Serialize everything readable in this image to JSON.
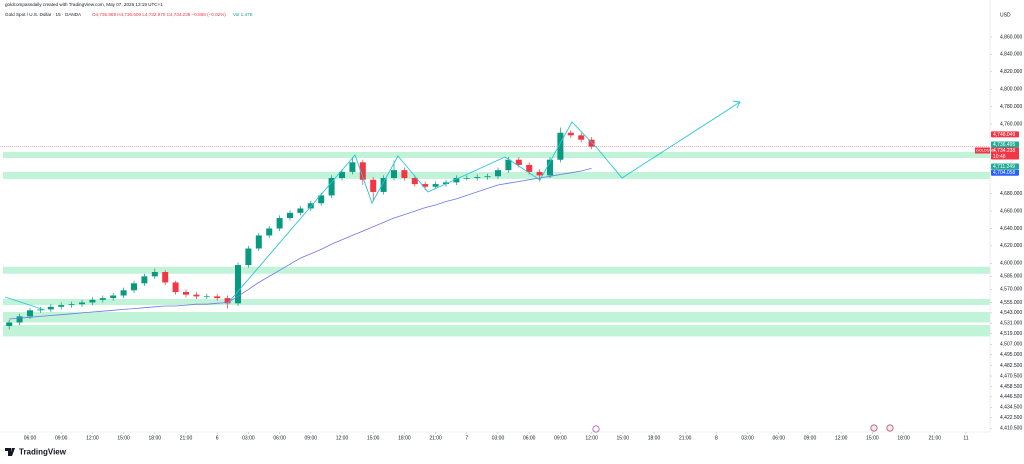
{
  "chart_data": {
    "type": "candlestick",
    "title": "goldcompassdaily created with TradingView.com, May 07, 2026 13:19 UTC+1",
    "subtitle": "Gold Spot / U.S. Dollar · 15 · OANDA",
    "ohlc_text": "O4,735.869 H4,736.609 L4,732.970 C4,734.238 −0.868 (−0.02%)",
    "volume_text": "Vol 1.47K",
    "currency": "USD",
    "footer": "TradingView",
    "up_color": "#089981",
    "down_color": "#f23645",
    "grid": false,
    "categories": [
      null,
      null,
      "06:00",
      null,
      null,
      "09:00",
      null,
      null,
      "12:00",
      null,
      null,
      "15:00",
      null,
      null,
      "18:00",
      null,
      null,
      "21:00",
      null,
      null,
      "6",
      null,
      null,
      "03:00",
      null,
      null,
      "06:00",
      null,
      null,
      "09:00",
      null,
      null,
      "12:00",
      null,
      null,
      "15:00",
      null,
      null,
      "18:00",
      null,
      null,
      "21:00",
      null,
      null,
      "7",
      null,
      null,
      "03:00",
      null,
      null,
      "06:00",
      null,
      null,
      "09:00",
      null,
      null,
      "12:00",
      null,
      null,
      "15:00",
      null,
      null,
      "18:00",
      null,
      null,
      "21:00",
      null,
      null,
      "8",
      null,
      null,
      "03:00",
      null,
      null,
      "06:00",
      null,
      null,
      "09:00",
      null,
      null,
      "12:00",
      null,
      null,
      "15:00",
      null,
      null,
      "18:00",
      null,
      null,
      "21:00",
      null,
      null,
      "11"
    ],
    "open": [
      4528,
      4532,
      4539,
      4546,
      4547,
      4550,
      4552,
      4553,
      4555,
      4558,
      4560,
      4563,
      4569,
      4577,
      4585,
      4590,
      4578,
      4567,
      4564,
      4562,
      4562,
      4560,
      4554,
      4598,
      4617,
      4632,
      4640,
      4652,
      4658,
      4663,
      4669,
      4678,
      4698,
      4705,
      4716,
      4696,
      4682,
      4698,
      4707,
      4698,
      4691,
      4688,
      4691,
      4693,
      4698,
      4698,
      4699,
      4700,
      4707,
      4719,
      4713,
      4705,
      4701,
      4719,
      4750,
      4747,
      4742,
      null,
      null,
      null,
      null,
      null,
      null,
      null,
      null,
      null,
      null,
      null,
      null,
      null,
      null,
      null,
      null,
      null,
      null,
      null,
      null,
      null,
      null,
      null,
      null,
      null,
      null,
      null,
      null,
      null,
      null,
      null,
      null,
      null,
      null,
      null,
      null
    ],
    "high": [
      4535,
      4542,
      4549,
      4550,
      4553,
      4555,
      4556,
      4558,
      4561,
      4563,
      4566,
      4572,
      4580,
      4588,
      4594,
      4592,
      4580,
      4570,
      4567,
      4565,
      4565,
      4563,
      4601,
      4620,
      4635,
      4643,
      4655,
      4661,
      4666,
      4672,
      4681,
      4701,
      4708,
      4722,
      4719,
      4699,
      4701,
      4718,
      4710,
      4701,
      4694,
      4694,
      4696,
      4701,
      4701,
      4702,
      4703,
      4710,
      4722,
      4722,
      4716,
      4708,
      4722,
      4756,
      4753,
      4750,
      4745,
      null,
      null,
      null,
      null,
      null,
      null,
      null,
      null,
      null,
      null,
      null,
      null,
      null,
      null,
      null,
      null,
      null,
      null,
      null,
      null,
      null,
      null,
      null,
      null,
      null,
      null,
      null,
      null,
      null,
      null,
      null,
      null,
      null,
      null,
      null,
      null
    ],
    "low": [
      4524,
      4529,
      4536,
      4543,
      4544,
      4547,
      4549,
      4550,
      4552,
      4555,
      4557,
      4560,
      4566,
      4574,
      4582,
      4575,
      4564,
      4561,
      4559,
      4559,
      4557,
      4548,
      4551,
      4595,
      4614,
      4629,
      4637,
      4649,
      4655,
      4660,
      4666,
      4675,
      4695,
      4702,
      4690,
      4672,
      4679,
      4695,
      4695,
      4688,
      4684,
      4685,
      4688,
      4690,
      4695,
      4695,
      4696,
      4697,
      4704,
      4710,
      4702,
      4694,
      4698,
      4716,
      4744,
      4739,
      4731,
      null,
      null,
      null,
      null,
      null,
      null,
      null,
      null,
      null,
      null,
      null,
      null,
      null,
      null,
      null,
      null,
      null,
      null,
      null,
      null,
      null,
      null,
      null,
      null,
      null,
      null,
      null,
      null,
      null,
      null,
      null,
      null,
      null,
      null,
      null,
      null
    ],
    "close": [
      4532,
      4539,
      4546,
      4547,
      4550,
      4552,
      4553,
      4555,
      4558,
      4560,
      4563,
      4569,
      4577,
      4585,
      4590,
      4578,
      4567,
      4564,
      4562,
      4562,
      4560,
      4554,
      4598,
      4617,
      4632,
      4640,
      4652,
      4658,
      4663,
      4669,
      4678,
      4698,
      4705,
      4716,
      4696,
      4682,
      4698,
      4707,
      4698,
      4691,
      4688,
      4691,
      4693,
      4698,
      4698,
      4699,
      4700,
      4707,
      4719,
      4713,
      4705,
      4701,
      4719,
      4750,
      4747,
      4742,
      4734,
      null,
      null,
      null,
      null,
      null,
      null,
      null,
      null,
      null,
      null,
      null,
      null,
      null,
      null,
      null,
      null,
      null,
      null,
      null,
      null,
      null,
      null,
      null,
      null,
      null,
      null,
      null,
      null,
      null,
      null,
      null,
      null,
      null,
      null,
      null,
      null
    ],
    "moving_average": {
      "color": "#6c79e8",
      "values": [
        4536,
        4537,
        4538,
        4539,
        4540,
        4541,
        4542,
        4543,
        4544,
        4545,
        4546,
        4547,
        4548,
        4549,
        4550,
        4551,
        4551,
        4552,
        4553,
        4553,
        4554,
        4555,
        4562,
        4570,
        4578,
        4585,
        4592,
        4599,
        4606,
        4611,
        4616,
        4622,
        4627,
        4632,
        4637,
        4642,
        4647,
        4652,
        4656,
        4660,
        4664,
        4667,
        4671,
        4674,
        4678,
        4682,
        4686,
        4690,
        4692,
        4694,
        4696,
        4698,
        4700,
        4702,
        4704,
        4706,
        4709,
        null,
        null,
        null,
        null,
        null,
        null,
        null,
        null,
        null,
        null,
        null,
        null,
        null,
        null,
        null,
        null,
        null,
        null,
        null,
        null,
        null,
        null,
        null,
        null,
        null,
        null,
        null,
        null,
        null,
        null,
        null,
        null,
        null,
        null,
        null,
        null
      ]
    },
    "zones": [
      [
        4721,
        4728
      ],
      [
        4697,
        4705
      ],
      [
        4588,
        4596
      ],
      [
        4552,
        4559
      ],
      [
        4532,
        4544
      ],
      [
        4516,
        4529
      ]
    ],
    "zone_color": "#b9f2d4",
    "ylim": [
      4397,
      4891
    ],
    "yticks": [
      {
        "value": 4860,
        "label": "4,860.000"
      },
      {
        "value": 4840,
        "label": "4,840.000"
      },
      {
        "value": 4820,
        "label": "4,820.000"
      },
      {
        "value": 4800,
        "label": "4,800.000"
      },
      {
        "value": 4780,
        "label": "4,780.000"
      },
      {
        "value": 4760,
        "label": "4,760.000"
      },
      {
        "value": 4680,
        "label": "4,680.000"
      },
      {
        "value": 4660,
        "label": "4,660.000"
      },
      {
        "value": 4640,
        "label": "4,640.000"
      },
      {
        "value": 4620,
        "label": "4,620.000"
      },
      {
        "value": 4600,
        "label": "4,600.000"
      },
      {
        "value": 4585,
        "label": "4,585.000"
      },
      {
        "value": 4570,
        "label": "4,570.000"
      },
      {
        "value": 4555,
        "label": "4,555.000"
      },
      {
        "value": 4543,
        "label": "4,543.000"
      },
      {
        "value": 4531,
        "label": "4,531.000"
      },
      {
        "value": 4519,
        "label": "4,519.000"
      },
      {
        "value": 4507,
        "label": "4,507.000"
      },
      {
        "value": 4495,
        "label": "4,495.000"
      },
      {
        "value": 4482.5,
        "label": "4,482.500"
      },
      {
        "value": 4470.5,
        "label": "4,470.500"
      },
      {
        "value": 4458.5,
        "label": "4,458.500"
      },
      {
        "value": 4446.5,
        "label": "4,446.500"
      },
      {
        "value": 4434.5,
        "label": "4,434.500"
      },
      {
        "value": 4422.5,
        "label": "4,422.500"
      },
      {
        "value": 4410.5,
        "label": "4,410.500"
      }
    ],
    "price_labels": [
      {
        "value": 4748.049,
        "label": "4,748.049",
        "color": "#f23645"
      },
      {
        "value": 4736.495,
        "label": "4,736.495",
        "color": "#22ab94"
      },
      {
        "value": 4711.249,
        "label": "4,711.249",
        "color": "#22ab94"
      },
      {
        "value": 4704.058,
        "label": "4,704.058",
        "color": "#2962ff"
      }
    ],
    "current_price": {
      "symbol": "GOLDUSD",
      "value": 4734.238,
      "label": "4,734.238",
      "countdown": "10:48",
      "color": "#f23645"
    }
  }
}
